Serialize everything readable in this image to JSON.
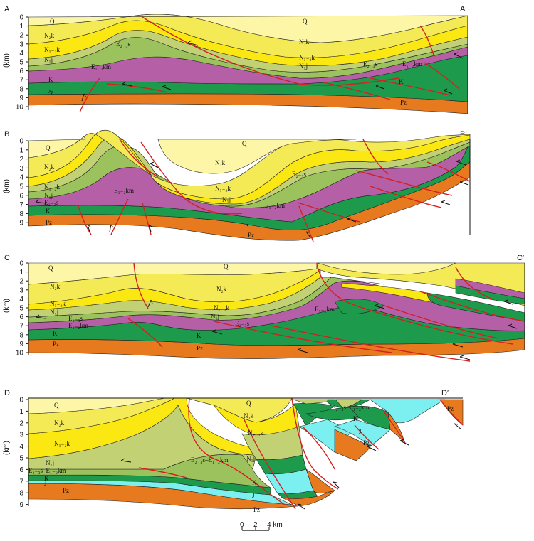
{
  "colors": {
    "Q": "#fdf6a6",
    "N2k": "#f4ea55",
    "N1_2k": "#fbe812",
    "N1j": "#c2d173",
    "E2_3s": "#9bc25c",
    "E1_2km": "#b560a6",
    "K": "#1e9a4d",
    "J": "#7cf0f0",
    "Pz": "#e77a1e",
    "fault": "#d42020"
  },
  "depth_axis": {
    "unit": "(km)"
  },
  "sections": [
    {
      "id": "A",
      "left_label": "A",
      "right_label": "A′",
      "ticks": [
        "0",
        "1",
        "2",
        "3",
        "4",
        "5",
        "6",
        "7",
        "8",
        "9",
        "10"
      ],
      "labels": [
        "Q",
        "Q",
        "N₂k",
        "N₂k",
        "N₁₋₂k",
        "N₁₋₂k",
        "N₁j",
        "N₁j",
        "E₂₋₃s",
        "E₂₋₃s",
        "E₁₋₂km",
        "E₁₋₂km",
        "K",
        "K",
        "Pz",
        "Pz"
      ]
    },
    {
      "id": "B",
      "left_label": "B",
      "right_label": "B′",
      "ticks": [
        "0",
        "1",
        "2",
        "3",
        "4",
        "5",
        "6",
        "7",
        "8",
        "9"
      ],
      "labels": [
        "Q",
        "Q",
        "N₂k",
        "N₂k",
        "N₁₋₂k",
        "N₁₋₂k",
        "N₁j",
        "N₁j",
        "E₂₋₃s",
        "E₂₋₃s",
        "E₁₋₂km",
        "E₁₋₂km",
        "K",
        "K",
        "Pz",
        "Pz"
      ]
    },
    {
      "id": "C",
      "left_label": "C",
      "right_label": "C′",
      "ticks": [
        "0",
        "1",
        "2",
        "3",
        "4",
        "5",
        "6",
        "7",
        "8",
        "9",
        "10"
      ],
      "labels": [
        "Q",
        "Q",
        "N₂k",
        "N₂k",
        "N₁₋₂k",
        "N₁₋₂k",
        "N₁j",
        "N₁j",
        "E₂₋₃s",
        "E₂₋₃s",
        "E₁₋₂km",
        "E₁₋₂km",
        "K",
        "K",
        "Pz",
        "Pz"
      ]
    },
    {
      "id": "D",
      "left_label": "D",
      "right_label": "D′",
      "ticks": [
        "0",
        "1",
        "2",
        "3",
        "4",
        "5",
        "6",
        "7",
        "8",
        "9"
      ],
      "labels": [
        "Q",
        "Q",
        "N₂k",
        "N₂k",
        "N₁₋₂k",
        "N₁₋₂k",
        "N₁j",
        "N₁j",
        "E₂₋₃s–E₁₋₂km",
        "E₂₋₃s–E₁₋₂km",
        "E₂₋₃s–E₁₋₂km",
        "K",
        "K",
        "K",
        "J",
        "J",
        "J",
        "Pz",
        "Pz",
        "Pz",
        "Pz"
      ]
    }
  ],
  "scale_bar": {
    "ticks": [
      "0",
      "2",
      "4 km"
    ]
  }
}
